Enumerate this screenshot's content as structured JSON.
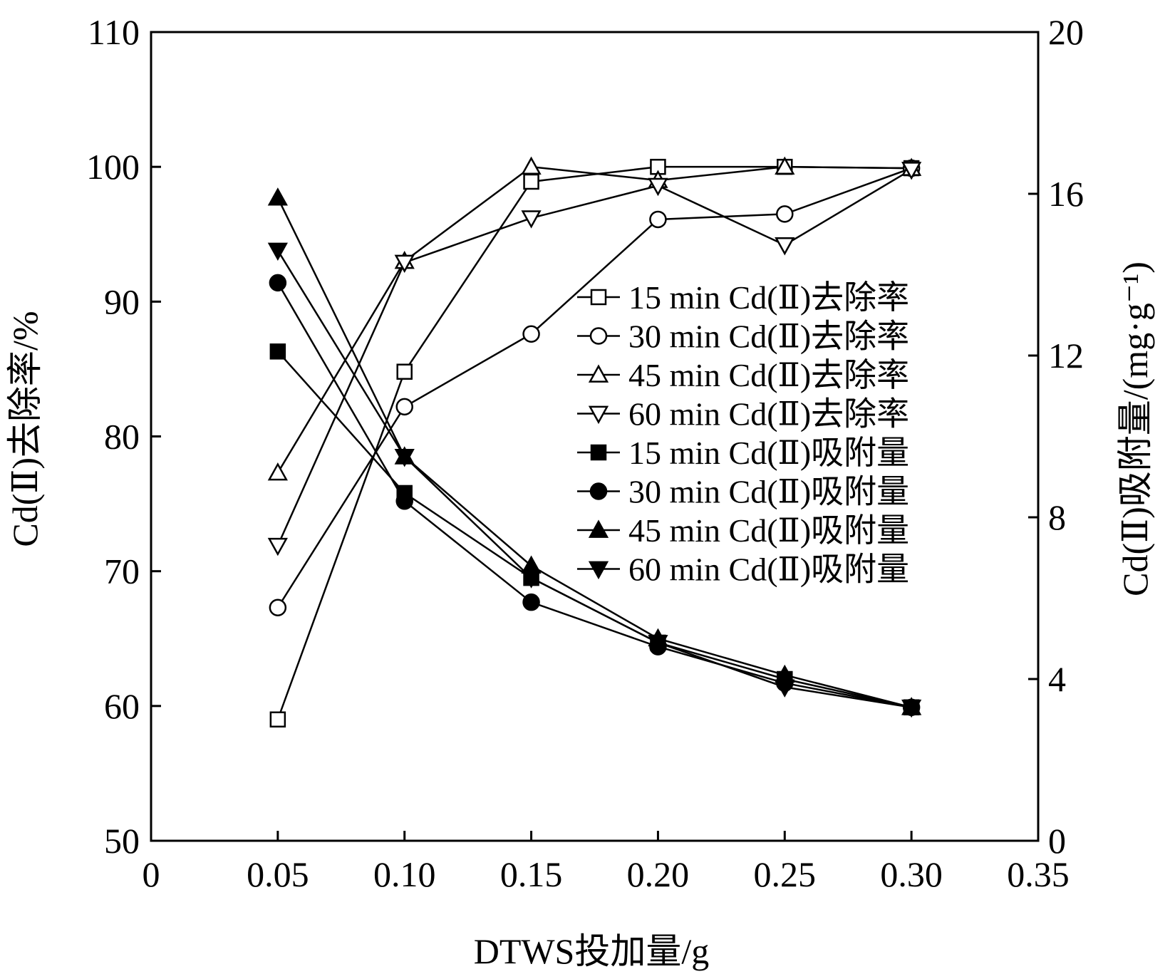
{
  "chart_data": {
    "type": "line",
    "title": "",
    "xlabel": "DTWS投加量/g",
    "ylabel": "Cd(Ⅱ)去除率/%",
    "y2label": "Cd(Ⅱ)吸附量/(mg·g⁻¹)",
    "xlim": [
      0,
      0.35
    ],
    "ylim": [
      50,
      110
    ],
    "y2lim": [
      0,
      20
    ],
    "x_ticks": [
      "0",
      "0.05",
      "0.10",
      "0.15",
      "0.20",
      "0.25",
      "0.30",
      "0.35"
    ],
    "y_ticks": [
      "50",
      "60",
      "70",
      "80",
      "90",
      "100",
      "110"
    ],
    "y2_ticks": [
      "0",
      "4",
      "8",
      "12",
      "16",
      "20"
    ],
    "x": [
      0.05,
      0.1,
      0.15,
      0.2,
      0.25,
      0.3
    ],
    "grid": false,
    "legend_position": "right-center",
    "series": [
      {
        "name": "15 min Cd(Ⅱ)去除率",
        "axis": "left",
        "marker": "square",
        "filled": false,
        "values": [
          59.0,
          84.8,
          98.9,
          100.0,
          100.0,
          99.9
        ]
      },
      {
        "name": "30 min Cd(Ⅱ)去除率",
        "axis": "left",
        "marker": "circle",
        "filled": false,
        "values": [
          67.3,
          82.2,
          87.6,
          96.1,
          96.5,
          99.9
        ]
      },
      {
        "name": "45 min Cd(Ⅱ)去除率",
        "axis": "left",
        "marker": "triangle-up",
        "filled": false,
        "values": [
          77.3,
          93.0,
          100.0,
          99.0,
          100.0,
          99.9
        ]
      },
      {
        "name": "60 min Cd(Ⅱ)去除率",
        "axis": "left",
        "marker": "triangle-down",
        "filled": false,
        "values": [
          71.9,
          92.9,
          96.2,
          98.6,
          94.2,
          99.8
        ]
      },
      {
        "name": "15 min Cd(Ⅱ)吸附量",
        "axis": "right",
        "marker": "square",
        "filled": true,
        "values": [
          12.1,
          8.6,
          6.5,
          4.9,
          4.0,
          3.3
        ]
      },
      {
        "name": "30 min Cd(Ⅱ)吸附量",
        "axis": "right",
        "marker": "circle",
        "filled": true,
        "values": [
          13.8,
          8.4,
          5.9,
          4.8,
          3.9,
          3.3
        ]
      },
      {
        "name": "45 min Cd(Ⅱ)吸附量",
        "axis": "right",
        "marker": "triangle-up",
        "filled": true,
        "values": [
          15.9,
          9.5,
          6.8,
          5.0,
          4.1,
          3.3
        ]
      },
      {
        "name": "60 min Cd(Ⅱ)吸附量",
        "axis": "right",
        "marker": "triangle-down",
        "filled": true,
        "values": [
          14.6,
          9.5,
          6.5,
          4.9,
          3.8,
          3.3
        ]
      }
    ]
  }
}
